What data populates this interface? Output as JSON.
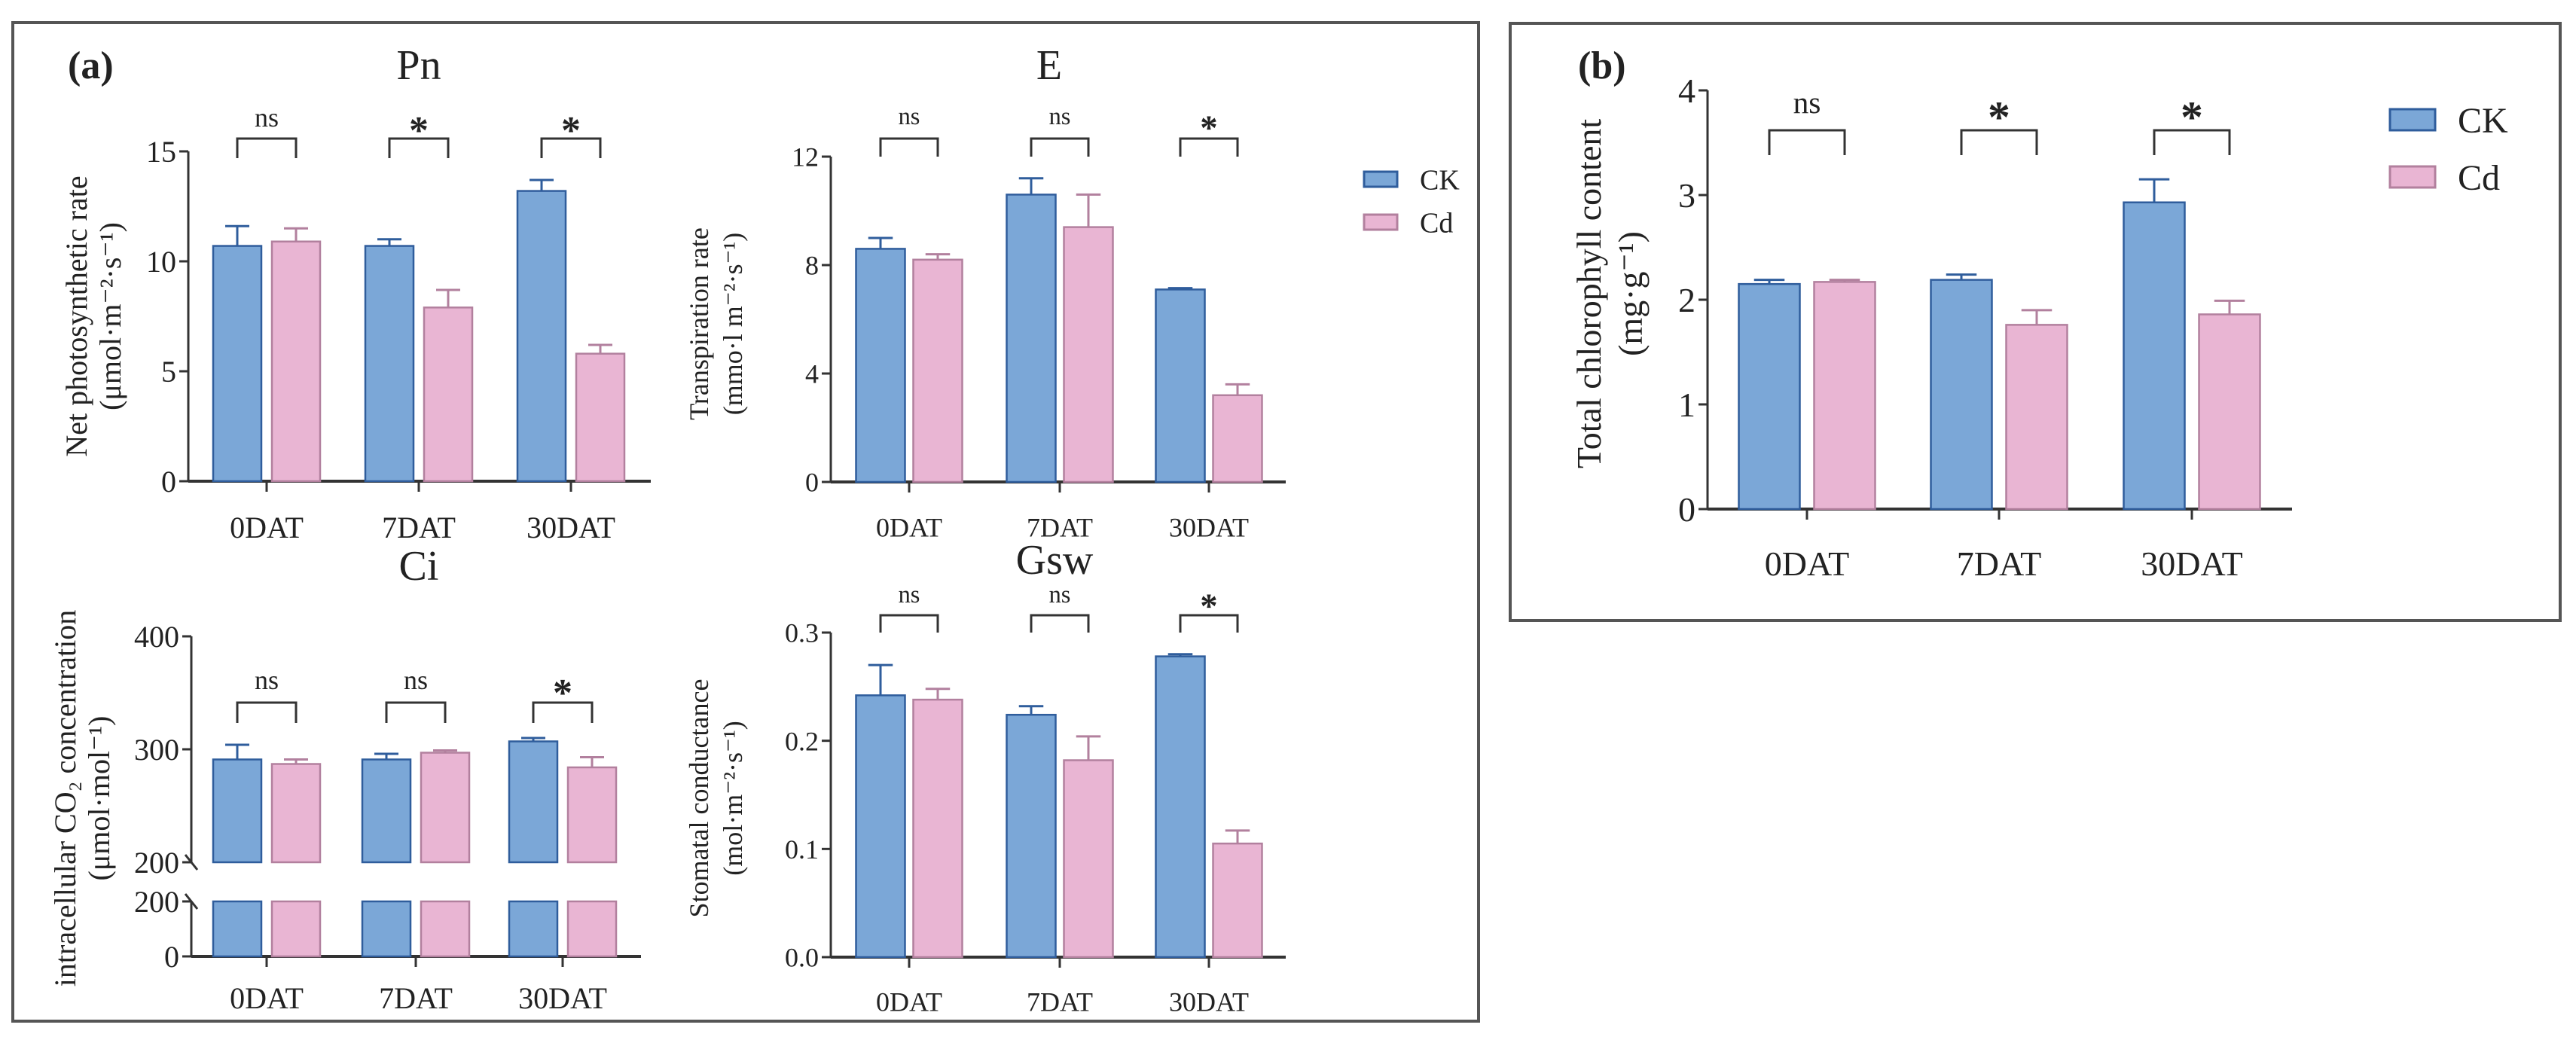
{
  "colors": {
    "CK_fill": "#7ba7d7",
    "CK_stroke": "#2f5d9c",
    "Cd_fill": "#e9b5d3",
    "Cd_stroke": "#b2809e",
    "axis": "#333333",
    "frame": "#555555"
  },
  "panels": {
    "a_label": "(a)",
    "b_label": "(b)"
  },
  "legend": [
    "CK",
    "Cd"
  ],
  "chart_data": [
    {
      "id": "pn",
      "type": "bar",
      "title": "Pn",
      "ylabel": [
        "Net photosynthetic rate",
        "(μmol·m⁻²·s⁻¹)"
      ],
      "categories": [
        "0DAT",
        "7DAT",
        "30DAT"
      ],
      "ylim": [
        0,
        15
      ],
      "ticks": [
        "0",
        "5",
        "10",
        "15"
      ],
      "tick_values": [
        0,
        5,
        10,
        15
      ],
      "series": [
        {
          "name": "CK",
          "values": [
            10.7,
            10.7,
            13.2
          ],
          "errors": [
            0.9,
            0.3,
            0.5
          ]
        },
        {
          "name": "Cd",
          "values": [
            10.9,
            7.9,
            5.8
          ],
          "errors": [
            0.6,
            0.8,
            0.4
          ]
        }
      ],
      "significance": [
        "ns",
        "*",
        "*"
      ]
    },
    {
      "id": "e",
      "type": "bar",
      "title": "E",
      "ylabel": [
        "Transpiration rate",
        "(mmo·l m⁻²·s⁻¹)"
      ],
      "categories": [
        "0DAT",
        "7DAT",
        "30DAT"
      ],
      "ylim": [
        0,
        12
      ],
      "ticks": [
        "0",
        "4",
        "8",
        "12"
      ],
      "tick_values": [
        0,
        4,
        8,
        12
      ],
      "series": [
        {
          "name": "CK",
          "values": [
            8.6,
            10.6,
            7.1
          ],
          "errors": [
            0.4,
            0.6,
            0.05
          ]
        },
        {
          "name": "Cd",
          "values": [
            8.2,
            9.4,
            3.2
          ],
          "errors": [
            0.2,
            1.2,
            0.4
          ]
        }
      ],
      "significance": [
        "ns",
        "ns",
        "*"
      ]
    },
    {
      "id": "ci",
      "type": "bar",
      "title": "Ci",
      "ylabel": [
        "intracellular CO₂ concentration",
        "(μmol·mol⁻¹)"
      ],
      "categories": [
        "0DAT",
        "7DAT",
        "30DAT"
      ],
      "ylim": [
        0,
        400
      ],
      "axis_break": [
        200,
        200
      ],
      "ticks": [
        "0",
        "200",
        "200",
        "300",
        "400"
      ],
      "tick_values": [
        0,
        200,
        200,
        300,
        400
      ],
      "series": [
        {
          "name": "CK",
          "values": [
            291,
            291,
            307
          ],
          "errors": [
            13,
            5,
            3
          ]
        },
        {
          "name": "Cd",
          "values": [
            287,
            297,
            284
          ],
          "errors": [
            4,
            2,
            9
          ]
        }
      ],
      "significance": [
        "ns",
        "ns",
        "*"
      ]
    },
    {
      "id": "gsw",
      "type": "bar",
      "title": "Gsw",
      "ylabel": [
        "Stomatal conductance",
        "(mol·m⁻²·s⁻¹)"
      ],
      "categories": [
        "0DAT",
        "7DAT",
        "30DAT"
      ],
      "ylim": [
        0,
        0.3
      ],
      "ticks": [
        "0.0",
        "0.1",
        "0.2",
        "0.3"
      ],
      "tick_values": [
        0,
        0.1,
        0.2,
        0.3
      ],
      "series": [
        {
          "name": "CK",
          "values": [
            0.242,
            0.224,
            0.278
          ],
          "errors": [
            0.028,
            0.008,
            0.002
          ]
        },
        {
          "name": "Cd",
          "values": [
            0.238,
            0.182,
            0.105
          ],
          "errors": [
            0.01,
            0.022,
            0.012
          ]
        }
      ],
      "significance": [
        "ns",
        "ns",
        "*"
      ]
    },
    {
      "id": "chl",
      "type": "bar",
      "title": "",
      "ylabel": [
        "Total chlorophyll content",
        "(mg·g⁻¹)"
      ],
      "categories": [
        "0DAT",
        "7DAT",
        "30DAT"
      ],
      "ylim": [
        0,
        4
      ],
      "ticks": [
        "0",
        "1",
        "2",
        "3",
        "4"
      ],
      "tick_values": [
        0,
        1,
        2,
        3,
        4
      ],
      "series": [
        {
          "name": "CK",
          "values": [
            2.15,
            2.19,
            2.93
          ],
          "errors": [
            0.04,
            0.05,
            0.22
          ]
        },
        {
          "name": "Cd",
          "values": [
            2.17,
            1.76,
            1.86
          ],
          "errors": [
            0.02,
            0.14,
            0.13
          ]
        }
      ],
      "significance": [
        "ns",
        "*",
        "*"
      ]
    }
  ]
}
